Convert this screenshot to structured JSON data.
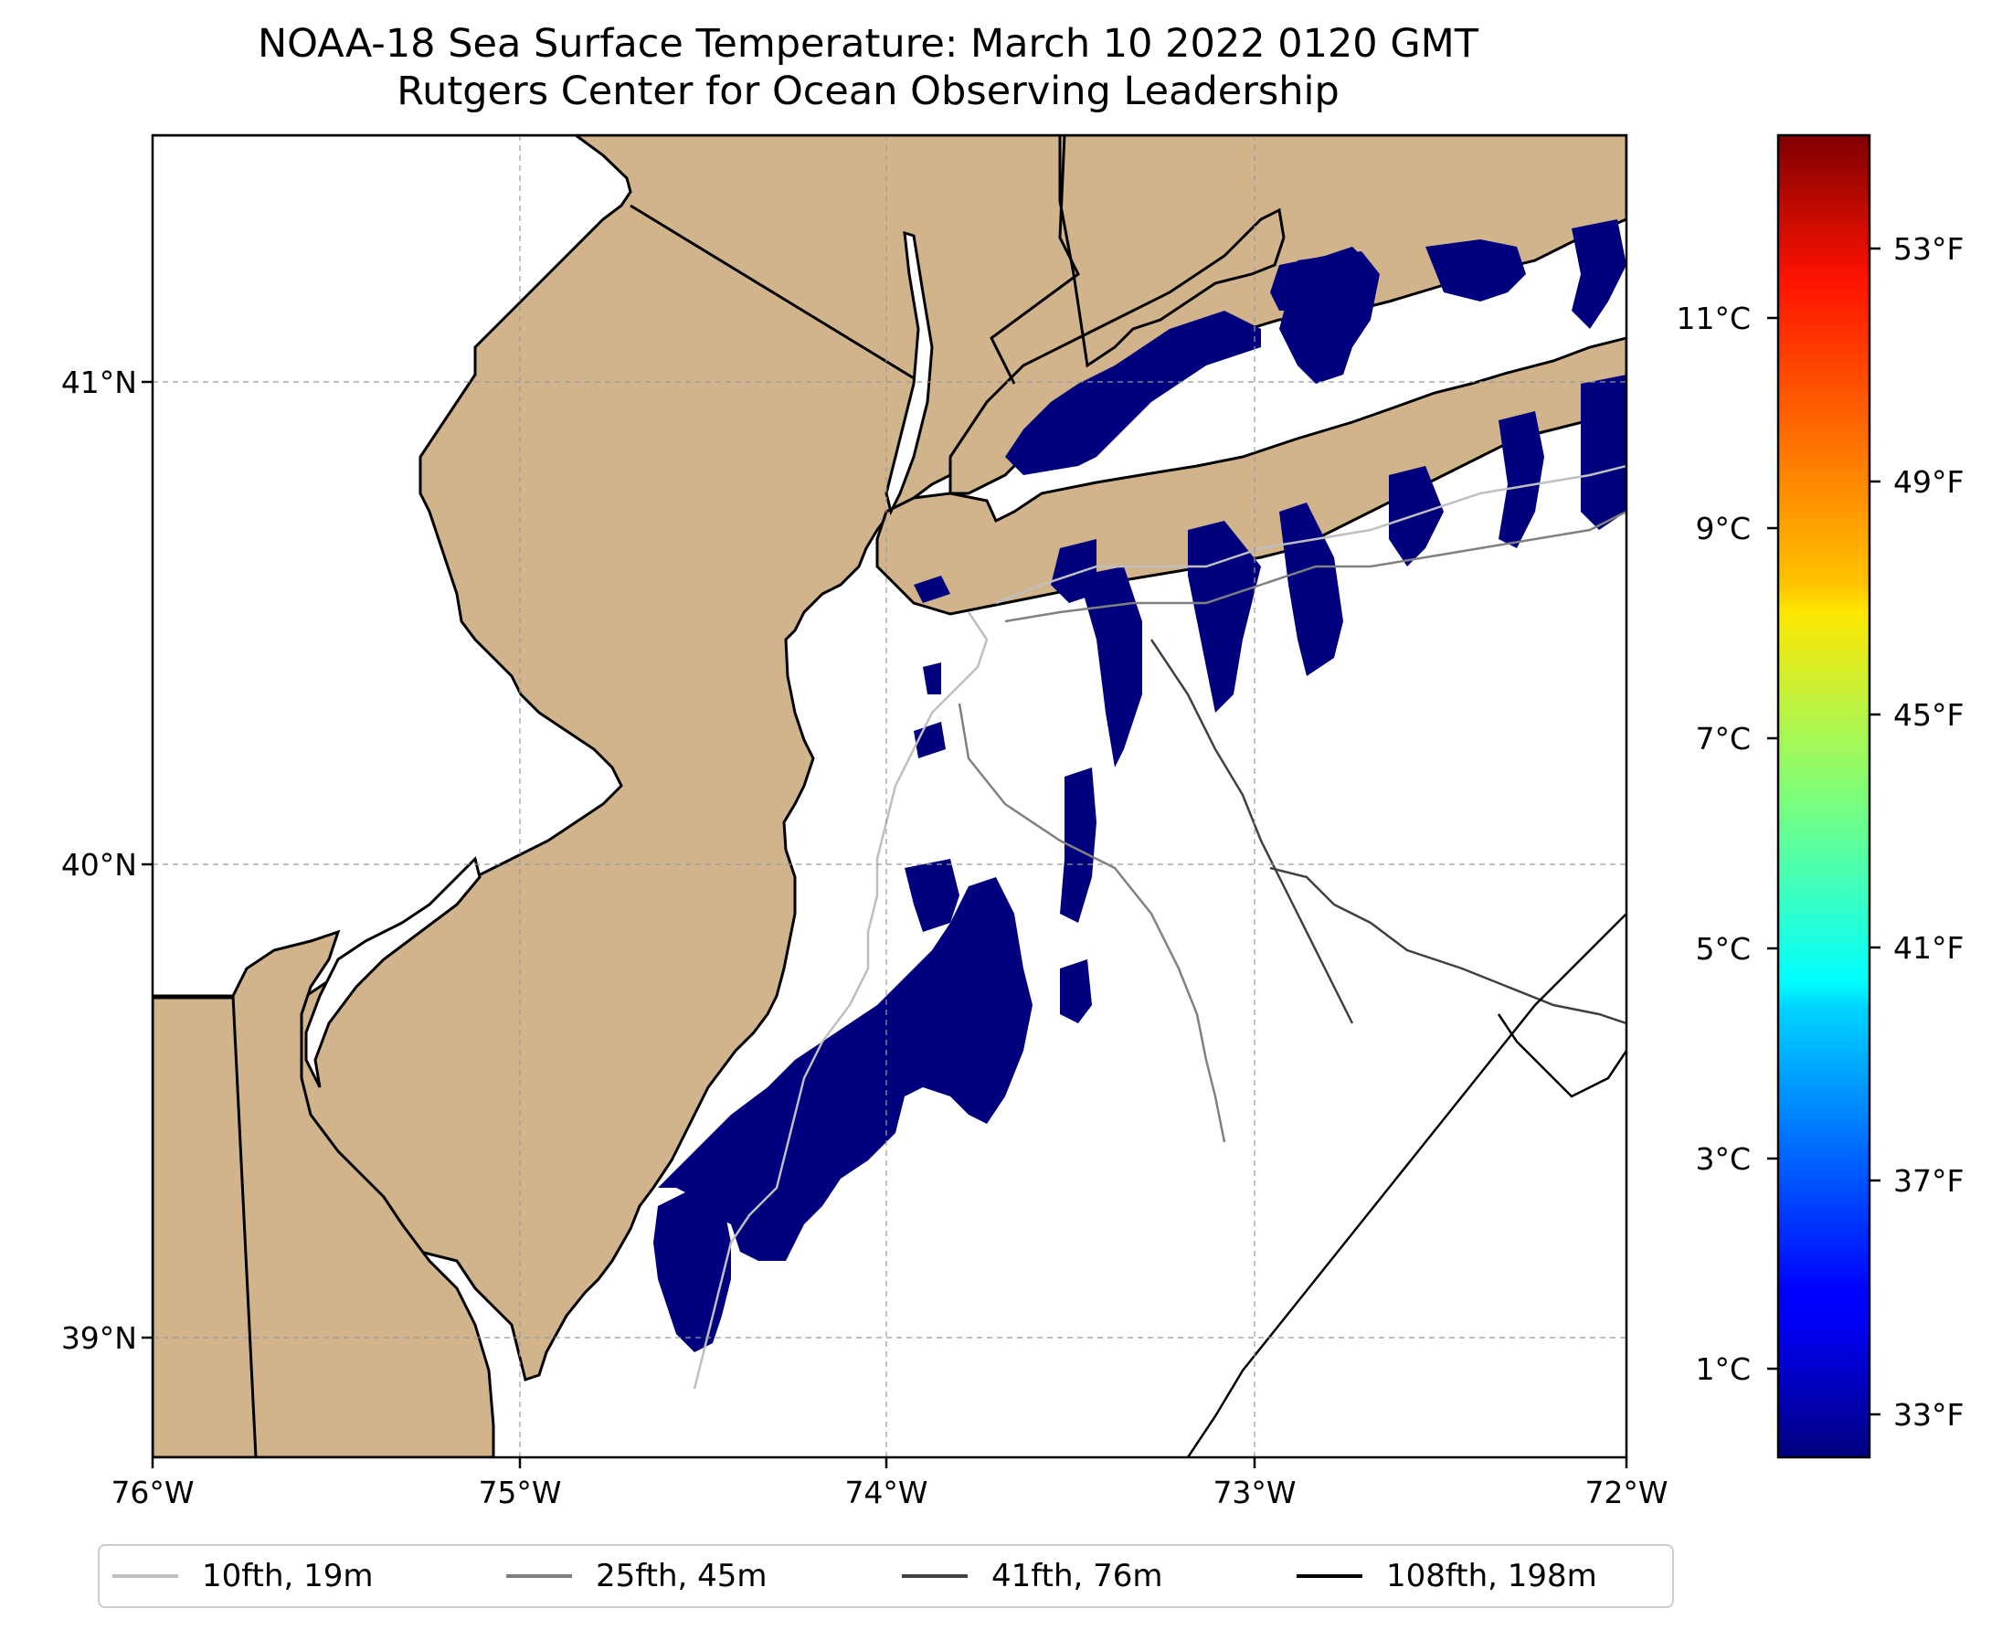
{
  "title": {
    "line1": "NOAA-18 Sea Surface Temperature: March 10 2022 0120 GMT",
    "line2": "Rutgers Center for Ocean Observing Leadership"
  },
  "map": {
    "lon_ticks": [
      "76°W",
      "75°W",
      "74°W",
      "73°W",
      "72°W"
    ],
    "lat_ticks": [
      "41°N",
      "40°N",
      "39°N"
    ],
    "land_color": "#d2b48c",
    "sst_color": "#00007f"
  },
  "colorbar": {
    "celsius_ticks": [
      "11°C",
      "9°C",
      "7°C",
      "5°C",
      "3°C",
      "1°C"
    ],
    "fahrenheit_ticks": [
      "53°F",
      "49°F",
      "45°F",
      "41°F",
      "37°F",
      "33°F"
    ],
    "colormap": "jet"
  },
  "legend": {
    "items": [
      {
        "label": "10fth, 19m",
        "color": "#bfbfbf"
      },
      {
        "label": "25fth, 45m",
        "color": "#808080"
      },
      {
        "label": "41fth, 76m",
        "color": "#404040"
      },
      {
        "label": "108fth, 198m",
        "color": "#000000"
      }
    ]
  }
}
